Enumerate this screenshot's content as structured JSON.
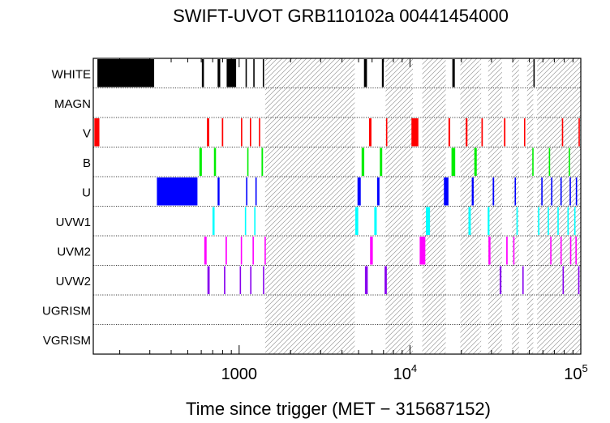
{
  "chart_data": {
    "type": "timeline",
    "title": "SWIFT-UVOT GRB110102a 00441454000",
    "xlabel": "Time since trigger (MET − 315687152)",
    "xscale": "log",
    "xlim": [
      140,
      100000
    ],
    "xticks": [
      {
        "value": 1000,
        "base": "1000",
        "exp": ""
      },
      {
        "value": 10000,
        "base": "10",
        "exp": "4"
      },
      {
        "value": 100000,
        "base": "10",
        "exp": "5"
      }
    ],
    "rows": [
      "WHITE",
      "MAGN",
      "V",
      "B",
      "U",
      "UVW1",
      "UVM2",
      "UVW2",
      "UGRISM",
      "VGRISM"
    ],
    "colors": {
      "WHITE": "#000000",
      "MAGN": "#000000",
      "V": "#ff0000",
      "B": "#00ee00",
      "U": "#0000ff",
      "UVW1": "#00ffff",
      "UVM2": "#ff00ff",
      "UVW2": "#8800ee",
      "UGRISM": "#000000",
      "VGRISM": "#000000"
    },
    "shaded_intervals": [
      [
        1420,
        4750
      ],
      [
        7200,
        10400
      ],
      [
        11800,
        16200
      ],
      [
        19700,
        25400
      ],
      [
        25600,
        26100
      ],
      [
        28700,
        34600
      ],
      [
        39500,
        43500
      ],
      [
        48500,
        52700
      ],
      [
        55500,
        100000
      ]
    ],
    "exposures": {
      "WHITE": [
        [
          148,
          318
        ],
        [
          605,
          622
        ],
        [
          748,
          775
        ],
        [
          845,
          960
        ],
        [
          1090,
          1105
        ],
        [
          1210,
          1225
        ],
        [
          1375,
          1395
        ],
        [
          5380,
          5600
        ],
        [
          6850,
          7020
        ],
        [
          17700,
          18300
        ],
        [
          52800,
          53300
        ]
      ],
      "MAGN": [],
      "V": [
        [
          142,
          152
        ],
        [
          648,
          668
        ],
        [
          792,
          807
        ],
        [
          1025,
          1040
        ],
        [
          1155,
          1168
        ],
        [
          1305,
          1318
        ],
        [
          5760,
          5950
        ],
        [
          7240,
          7300
        ],
        [
          10200,
          11200
        ],
        [
          16800,
          17200
        ],
        [
          21200,
          21700
        ],
        [
          26200,
          26700
        ],
        [
          35500,
          36200
        ],
        [
          46500,
          47200
        ],
        [
          77500,
          78300
        ],
        [
          97000,
          98000
        ]
      ],
      "B": [
        [
          585,
          605
        ],
        [
          712,
          732
        ],
        [
          1115,
          1130
        ],
        [
          1352,
          1380
        ],
        [
          5210,
          5400
        ],
        [
          6660,
          6880
        ],
        [
          17500,
          18400
        ],
        [
          23800,
          24600
        ],
        [
          52000,
          52600
        ],
        [
          65000,
          65800
        ],
        [
          85000,
          85800
        ]
      ],
      "U": [
        [
          330,
          570
        ],
        [
          748,
          768
        ],
        [
          1098,
          1112
        ],
        [
          1245,
          1258
        ],
        [
          4930,
          5150
        ],
        [
          6420,
          6630
        ],
        [
          15800,
          16800
        ],
        [
          23000,
          23600
        ],
        [
          30500,
          31100
        ],
        [
          41000,
          41700
        ],
        [
          58700,
          59400
        ],
        [
          67000,
          67700
        ],
        [
          76000,
          76800
        ],
        [
          86000,
          86800
        ],
        [
          93500,
          94200
        ]
      ],
      "UVW1": [
        [
          698,
          718
        ],
        [
          1080,
          1095
        ],
        [
          1225,
          1240
        ],
        [
          4780,
          4980
        ],
        [
          6180,
          6390
        ],
        [
          12400,
          13100
        ],
        [
          22000,
          22700
        ],
        [
          28500,
          29200
        ],
        [
          42000,
          42700
        ],
        [
          56200,
          56900
        ],
        [
          64000,
          64700
        ],
        [
          73000,
          73800
        ],
        [
          83500,
          84200
        ],
        [
          91500,
          92200
        ]
      ],
      "UVM2": [
        [
          625,
          645
        ],
        [
          832,
          848
        ],
        [
          1022,
          1036
        ],
        [
          1198,
          1212
        ],
        [
          1408,
          1420
        ],
        [
          5840,
          6060
        ],
        [
          11400,
          12300
        ],
        [
          28800,
          29600
        ],
        [
          36600,
          37300
        ],
        [
          40200,
          40900
        ],
        [
          66200,
          66900
        ],
        [
          76000,
          76700
        ],
        [
          86500,
          87200
        ],
        [
          93000,
          93800
        ]
      ],
      "UVW2": [
        [
          652,
          672
        ],
        [
          815,
          830
        ],
        [
          1008,
          1022
        ],
        [
          1160,
          1175
        ],
        [
          1378,
          1395
        ],
        [
          5450,
          5660
        ],
        [
          7100,
          7320
        ],
        [
          33500,
          34300
        ],
        [
          45500,
          46200
        ],
        [
          78200,
          78900
        ],
        [
          96500,
          97300
        ]
      ],
      "UGRISM": [],
      "VGRISM": []
    }
  }
}
